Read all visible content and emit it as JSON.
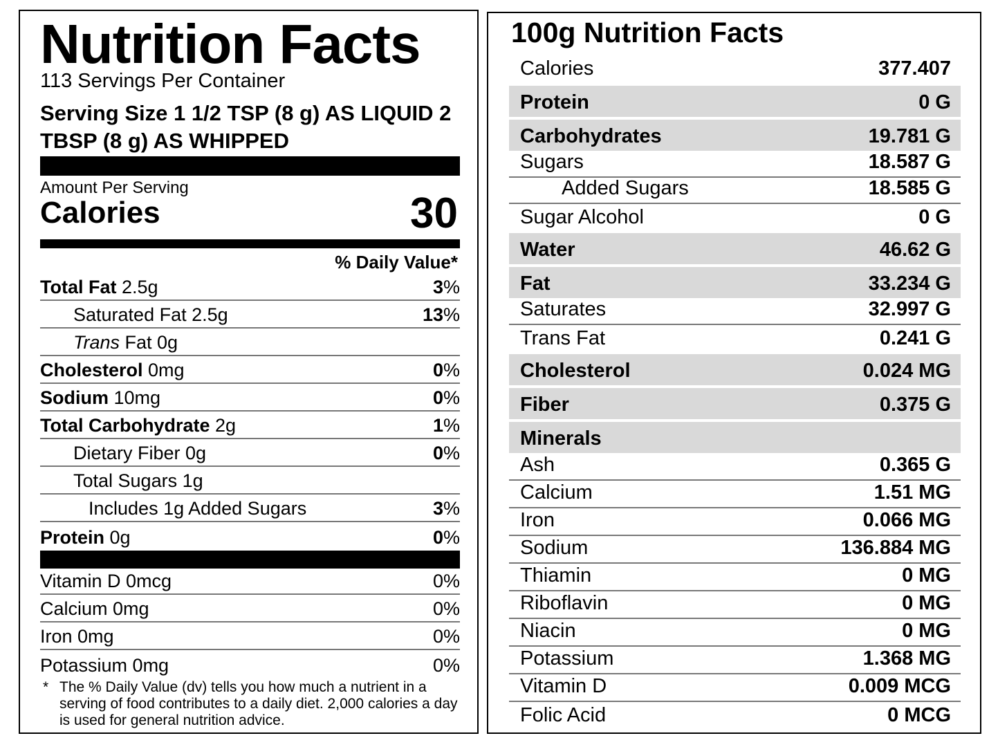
{
  "left": {
    "title": "Nutrition Facts",
    "servings_per_container": "113 Servings Per Container",
    "serving_size": "Serving Size 1 1/2 TSP (8 g) AS LIQUID 2 TBSP (8 g) AS WHIPPED",
    "amount_per_serving": "Amount Per Serving",
    "calories_label": "Calories",
    "calories_value": "30",
    "dv_header": "% Daily Value*",
    "nutrients": [
      {
        "name": "Total Fat",
        "amount": " 2.5g",
        "dv": "3",
        "pct": "%"
      },
      {
        "name": "Saturated Fat 2.5g",
        "dv": "13",
        "pct": "%"
      },
      {
        "name_italic": "Trans",
        "name": " Fat 0g"
      },
      {
        "name": "Cholesterol",
        "amount": " 0mg",
        "dv": "0",
        "pct": "%"
      },
      {
        "name": "Sodium",
        "amount": " 10mg",
        "dv": "0",
        "pct": "%"
      },
      {
        "name": "Total Carbohydrate",
        "amount": " 2g",
        "dv": "1",
        "pct": "%"
      },
      {
        "name": "Dietary Fiber 0g",
        "dv": "0",
        "pct": "%"
      },
      {
        "name": "Total Sugars 1g"
      },
      {
        "name": "Includes 1g Added Sugars",
        "dv": "3",
        "pct": "%"
      },
      {
        "name": "Protein",
        "amount": " 0g",
        "dv": "0",
        "pct": "%"
      }
    ],
    "vitamins": [
      {
        "name": "Vitamin D 0mcg",
        "dv": "0%"
      },
      {
        "name": "Calcium 0mg",
        "dv": "0%"
      },
      {
        "name": "Iron 0mg",
        "dv": "0%"
      },
      {
        "name": "Potassium 0mg",
        "dv": "0%"
      }
    ],
    "footnote_star": "*",
    "footnote": "The % Daily Value (dv) tells you how much a nutrient in a serving of food contributes to a daily diet. 2,000 calories a day is used for general nutrition advice."
  },
  "right": {
    "title": "100g Nutrition Facts",
    "rows": [
      {
        "name": "Calories",
        "value": "377.407"
      },
      {
        "name": "Protein",
        "value": "0 G"
      },
      {
        "name": "Carbohydrates",
        "value": "19.781 G"
      },
      {
        "name": "Sugars",
        "value": "18.587 G"
      },
      {
        "name": "Added Sugars",
        "value": "18.585 G"
      },
      {
        "name": "Sugar Alcohol",
        "value": "0 G"
      },
      {
        "name": "Water",
        "value": "46.62 G"
      },
      {
        "name": "Fat",
        "value": "33.234 G"
      },
      {
        "name": "Saturates",
        "value": "32.997 G"
      },
      {
        "name": "Trans Fat",
        "value": "0.241 G"
      },
      {
        "name": "Cholesterol",
        "value": "0.024 MG"
      },
      {
        "name": "Fiber",
        "value": "0.375 G"
      },
      {
        "name": "Minerals",
        "value": ""
      },
      {
        "name": "Ash",
        "value": "0.365 G"
      },
      {
        "name": "Calcium",
        "value": "1.51 MG"
      },
      {
        "name": "Iron",
        "value": "0.066 MG"
      },
      {
        "name": "Sodium",
        "value": "136.884 MG"
      },
      {
        "name": "Thiamin",
        "value": "0 MG"
      },
      {
        "name": "Riboflavin",
        "value": "0 MG"
      },
      {
        "name": "Niacin",
        "value": "0 MG"
      },
      {
        "name": "Potassium",
        "value": "1.368 MG"
      },
      {
        "name": "Vitamin D",
        "value": "0.009 MCG"
      },
      {
        "name": "Folic Acid",
        "value": "0 MCG"
      }
    ]
  }
}
